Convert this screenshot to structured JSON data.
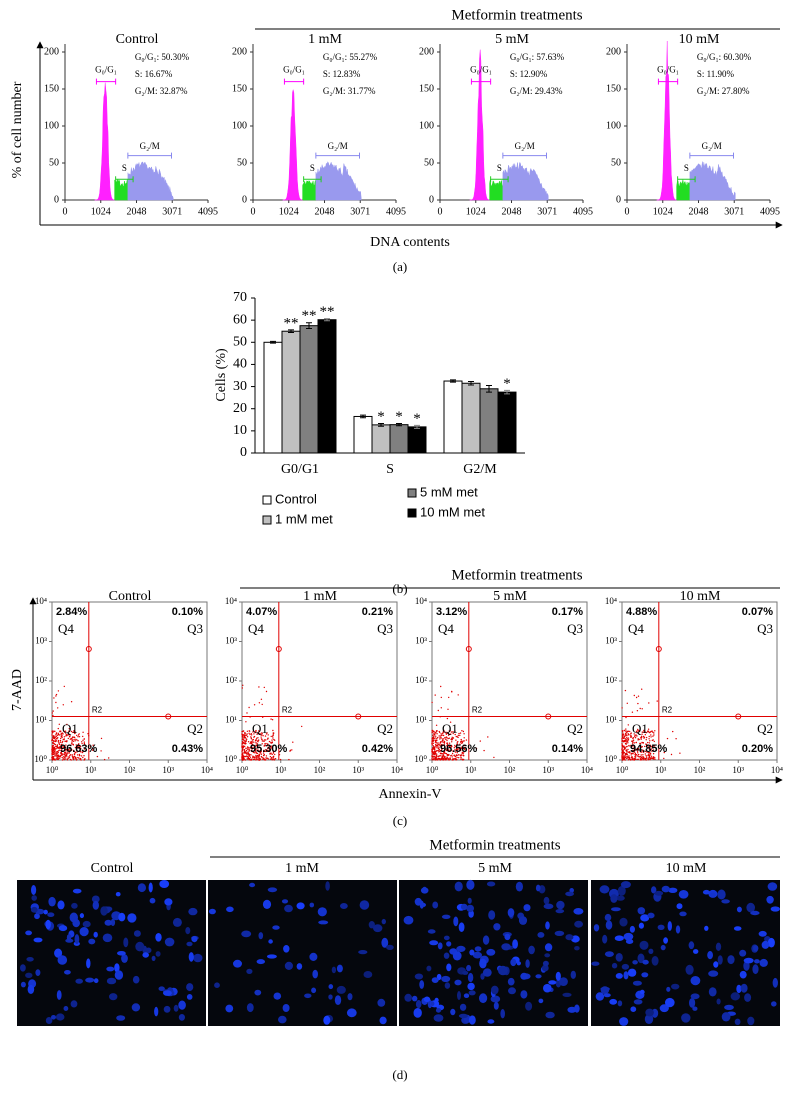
{
  "panel_a": {
    "treatment_title": "Metformin treatments",
    "y_label": "% of cell number",
    "x_label": "DNA contents",
    "caption": "(a)",
    "xlim": [
      0,
      4095
    ],
    "xticks": [
      0,
      1024,
      2048,
      3071,
      4095
    ],
    "ylim": [
      0,
      200
    ],
    "yticks": [
      0,
      50,
      100,
      150,
      200
    ],
    "gates": [
      "G₀/G₁",
      "S",
      "G₂/M"
    ],
    "plots": [
      {
        "title": "Control",
        "stats": [
          "G₀/G₁: 50.30%",
          "S: 16.67%",
          "G₂/M: 32.87%"
        ]
      },
      {
        "title": "1 mM",
        "stats": [
          "G₀/G₁: 55.27%",
          "S: 12.83%",
          "G₂/M: 31.77%"
        ]
      },
      {
        "title": "5 mM",
        "stats": [
          "G₀/G₁: 57.63%",
          "S: 12.90%",
          "G₂/M: 29.43%"
        ]
      },
      {
        "title": "10 mM",
        "stats": [
          "G₀/G₁: 60.30%",
          "S: 11.90%",
          "G₂/M: 27.80%"
        ]
      }
    ]
  },
  "chart_data": {
    "type": "bar",
    "caption": "(b)",
    "y_label": "Cells (%)",
    "categories": [
      "G0/G1",
      "S",
      "G2/M"
    ],
    "ylim": [
      0,
      70
    ],
    "yticks": [
      0,
      10,
      20,
      30,
      40,
      50,
      60,
      70
    ],
    "series": [
      {
        "name": "Control",
        "color": "#ffffff",
        "values": [
          50.0,
          16.5,
          32.5
        ],
        "errors": [
          0.4,
          0.6,
          0.5
        ],
        "annotations": [
          null,
          null,
          null
        ]
      },
      {
        "name": "1 mM met",
        "color": "#c0c0c0",
        "values": [
          55.0,
          12.7,
          31.5
        ],
        "errors": [
          0.6,
          0.6,
          0.8
        ],
        "annotations": [
          "**",
          "*",
          null
        ]
      },
      {
        "name": "5 mM met",
        "color": "#808080",
        "values": [
          57.5,
          12.8,
          29.0
        ],
        "errors": [
          1.3,
          0.5,
          1.5
        ],
        "annotations": [
          "**",
          "*",
          null
        ]
      },
      {
        "name": "10 mM met",
        "color": "#000000",
        "values": [
          60.2,
          11.8,
          27.5
        ],
        "errors": [
          0.5,
          0.7,
          0.8
        ],
        "annotations": [
          "**",
          "*",
          "*"
        ]
      }
    ]
  },
  "panel_c": {
    "treatment_title": "Metformin treatments",
    "y_label": "7-AAD",
    "x_label": "Annexin-V",
    "caption": "(c)",
    "lim": [
      1,
      10000
    ],
    "ticks": [
      {
        "value": 1,
        "label": "10⁰"
      },
      {
        "value": 10,
        "label": "10¹"
      },
      {
        "value": 100,
        "label": "10²"
      },
      {
        "value": 1000,
        "label": "10³"
      },
      {
        "value": 10000,
        "label": "10⁴"
      }
    ],
    "gate_label": "R2",
    "quadrants": [
      "Q1",
      "Q2",
      "Q3",
      "Q4"
    ],
    "plots": [
      {
        "title": "Control",
        "pcts": [
          "96.63%",
          "0.43%",
          "0.10%",
          "2.84%"
        ]
      },
      {
        "title": "1 mM",
        "pcts": [
          "95.30%",
          "0.42%",
          "0.21%",
          "4.07%"
        ]
      },
      {
        "title": "5 mM",
        "pcts": [
          "96.56%",
          "0.14%",
          "0.17%",
          "3.12%"
        ]
      },
      {
        "title": "10 mM",
        "pcts": [
          "94.85%",
          "0.20%",
          "0.07%",
          "4.88%"
        ]
      }
    ]
  },
  "panel_d": {
    "treatment_title": "Metformin treatments",
    "caption": "(d)",
    "titles": [
      "Control",
      "1 mM",
      "5 mM",
      "10 mM"
    ]
  }
}
